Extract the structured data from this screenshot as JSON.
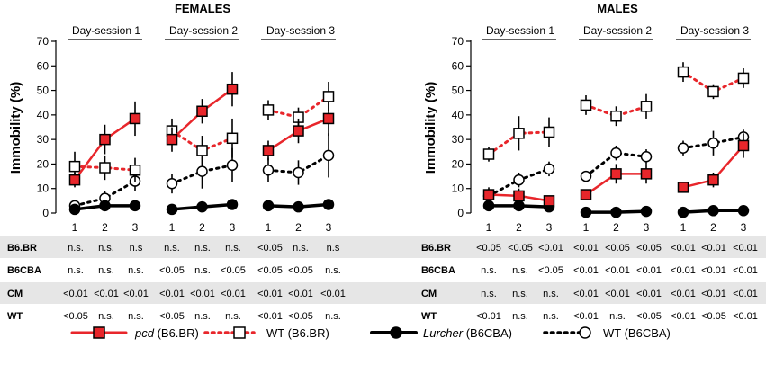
{
  "chart_data": {
    "type": "line",
    "y_label": "Immobility (%)",
    "ylim": [
      0,
      70
    ],
    "y_ticks": [
      "0",
      "10",
      "20",
      "30",
      "40",
      "50",
      "60",
      "70"
    ],
    "session_labels": [
      "Day-session 1",
      "Day-session 2",
      "Day-session 3"
    ],
    "x_ticks": [
      "1",
      "2",
      "3"
    ],
    "panels": [
      {
        "title": "FEMALES",
        "series": [
          {
            "name": "pcd (B6.BR)",
            "key": "pcd",
            "values": [
              [
                13.5,
                30,
                38.5
              ],
              [
                30,
                41.5,
                50.5
              ],
              [
                25.5,
                33.5,
                38.5
              ]
            ],
            "errors": [
              [
                3,
                6,
                7
              ],
              [
                5,
                5,
                7
              ],
              [
                4,
                5,
                7
              ]
            ]
          },
          {
            "name": "WT (B6.BR)",
            "key": "wtbr",
            "values": [
              [
                19,
                18.5,
                17.5
              ],
              [
                33.5,
                25.5,
                30.5
              ],
              [
                42,
                39,
                47.5
              ]
            ],
            "errors": [
              [
                6,
                5,
                5
              ],
              [
                5,
                6,
                8
              ],
              [
                4,
                4,
                6
              ]
            ]
          },
          {
            "name": "Lurcher (B6CBA)",
            "key": "lur",
            "values": [
              [
                1.5,
                3,
                3
              ],
              [
                1.5,
                2.5,
                3.5
              ],
              [
                3,
                2.5,
                3.5
              ]
            ],
            "errors": [
              [
                0.8,
                0.8,
                0.8
              ],
              [
                0.8,
                0.8,
                0.8
              ],
              [
                0.8,
                0.8,
                2
              ]
            ]
          },
          {
            "name": "WT (B6CBA)",
            "key": "wtcba",
            "values": [
              [
                3,
                6,
                13
              ],
              [
                12,
                17,
                19.5
              ],
              [
                17.5,
                16.5,
                23.5
              ]
            ],
            "errors": [
              [
                2,
                3,
                4
              ],
              [
                4,
                7,
                7
              ],
              [
                5,
                5,
                9
              ]
            ]
          }
        ]
      },
      {
        "title": "MALES",
        "series": [
          {
            "name": "pcd (B6.BR)",
            "key": "pcd",
            "values": [
              [
                7.5,
                7,
                5
              ],
              [
                7.5,
                16,
                16
              ],
              [
                10.5,
                13.5,
                27.5
              ]
            ],
            "errors": [
              [
                3,
                3,
                2
              ],
              [
                2,
                4,
                4
              ],
              [
                2,
                3,
                5
              ]
            ]
          },
          {
            "name": "WT (B6.BR)",
            "key": "wtbr",
            "values": [
              [
                24,
                32.5,
                33
              ],
              [
                44,
                39.5,
                43.5
              ],
              [
                57.5,
                49.5,
                55
              ]
            ],
            "errors": [
              [
                3,
                7,
                6
              ],
              [
                4,
                4,
                5
              ],
              [
                4,
                3,
                4
              ]
            ]
          },
          {
            "name": "Lurcher (B6CBA)",
            "key": "lur",
            "values": [
              [
                3,
                3,
                2.5
              ],
              [
                0.3,
                0.3,
                0.7
              ],
              [
                0.3,
                1,
                1
              ]
            ],
            "errors": [
              [
                0.8,
                0.8,
                0.8
              ],
              [
                0.3,
                0.3,
                0.3
              ],
              [
                0.3,
                0.3,
                0.3
              ]
            ]
          },
          {
            "name": "WT (B6CBA)",
            "key": "wtcba",
            "values": [
              [
                7,
                13.5,
                18
              ],
              [
                15,
                24.5,
                23
              ],
              [
                26.5,
                28.5,
                31
              ]
            ],
            "errors": [
              [
                2,
                3,
                3
              ],
              [
                2,
                3,
                3
              ],
              [
                3,
                5,
                3
              ]
            ]
          }
        ]
      }
    ],
    "tables": [
      {
        "panel": "FEMALES",
        "rows": [
          {
            "label": "B6.BR",
            "values": [
              "n.s.",
              "n.s.",
              "n.s",
              "n.s.",
              "n.s.",
              "n.s.",
              "<0.05",
              "n.s.",
              "n.s"
            ]
          },
          {
            "label": "B6CBA",
            "values": [
              "n.s.",
              "n.s.",
              "n.s.",
              "<0.05",
              "n.s.",
              "<0.05",
              "<0.05",
              "<0.05",
              "n.s."
            ]
          },
          {
            "label": "CM",
            "values": [
              "<0.01",
              "<0.01",
              "<0.01",
              "<0.01",
              "<0.01",
              "<0.01",
              "<0.01",
              "<0.01",
              "<0.01"
            ]
          },
          {
            "label": "WT",
            "values": [
              "<0.05",
              "n.s.",
              "n.s.",
              "<0.05",
              "n.s.",
              "n.s.",
              "<0.01",
              "<0.05",
              "n.s."
            ]
          }
        ]
      },
      {
        "panel": "MALES",
        "rows": [
          {
            "label": "B6.BR",
            "values": [
              "<0.05",
              "<0.05",
              "<0.01",
              "<0.01",
              "<0.05",
              "<0.05",
              "<0.01",
              "<0.01",
              "<0.01"
            ]
          },
          {
            "label": "B6CBA",
            "values": [
              "n.s.",
              "n.s.",
              "<0.05",
              "<0.01",
              "<0.01",
              "<0.01",
              "<0.01",
              "<0.01",
              "<0.01"
            ]
          },
          {
            "label": "CM",
            "values": [
              "n.s.",
              "n.s.",
              "n.s.",
              "<0.01",
              "<0.01",
              "<0.01",
              "<0.01",
              "<0.01",
              "<0.01"
            ]
          },
          {
            "label": "WT",
            "values": [
              "<0.01",
              "n.s.",
              "n.s.",
              "<0.01",
              "n.s.",
              "<0.05",
              "<0.01",
              "<0.05",
              "<0.01"
            ]
          }
        ]
      }
    ],
    "legend": [
      {
        "key": "pcd",
        "italic": "pcd",
        "text": " (B6.BR)"
      },
      {
        "key": "wtbr",
        "italic": "",
        "text": "WT (B6.BR)"
      },
      {
        "key": "lur",
        "italic": "Lurcher",
        "text": " (B6CBA)"
      },
      {
        "key": "wtcba",
        "italic": "",
        "text": "WT (B6CBA)"
      }
    ],
    "colors": {
      "red": "#e8262b",
      "black": "#000000",
      "row_shade": "#e6e6e6"
    }
  }
}
